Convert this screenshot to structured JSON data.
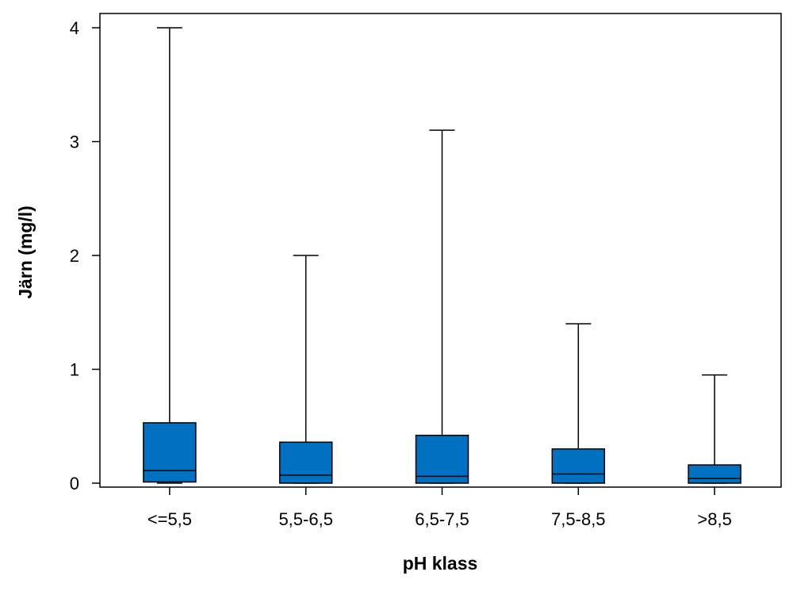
{
  "chart_data": {
    "type": "boxplot",
    "title": "",
    "xlabel": "pH klass",
    "ylabel": "Järn (mg/l)",
    "ylim": [
      0,
      4
    ],
    "y_ticks": [
      "0",
      "1",
      "2",
      "3",
      "4"
    ],
    "grid": false,
    "categories": [
      "<=5,5",
      "5,5-6,5",
      "6,5-7,5",
      "7,5-8,5",
      ">8,5"
    ],
    "boxes": [
      {
        "min": 0.0,
        "q1": 0.01,
        "median": 0.11,
        "q3": 0.53,
        "max": 4.0
      },
      {
        "min": 0.0,
        "q1": 0.0,
        "median": 0.07,
        "q3": 0.36,
        "max": 2.0
      },
      {
        "min": 0.0,
        "q1": 0.0,
        "median": 0.06,
        "q3": 0.42,
        "max": 3.1
      },
      {
        "min": 0.0,
        "q1": 0.0,
        "median": 0.08,
        "q3": 0.3,
        "max": 1.4
      },
      {
        "min": 0.0,
        "q1": 0.0,
        "median": 0.04,
        "q3": 0.16,
        "max": 0.95
      }
    ],
    "box_color": "#0070C0"
  }
}
